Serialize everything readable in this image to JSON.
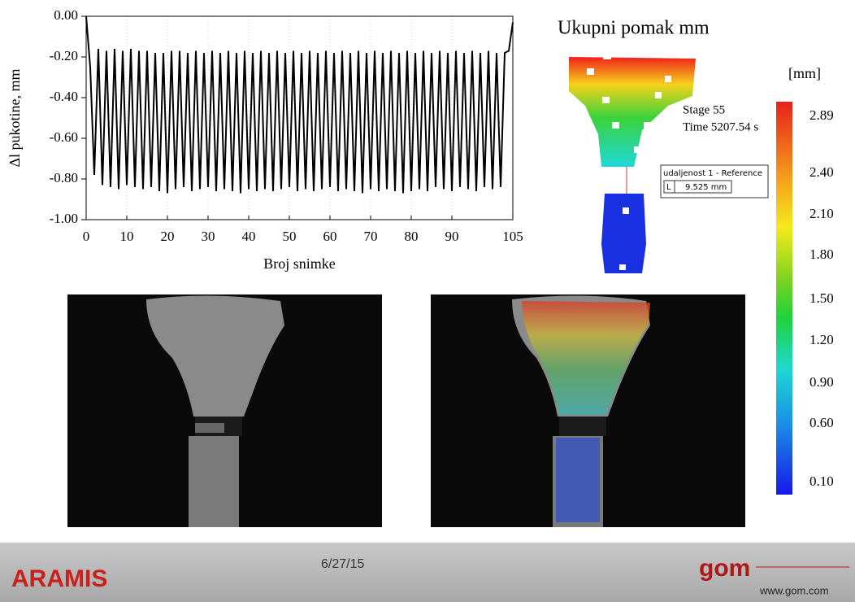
{
  "chart_data": {
    "type": "line",
    "x_label": "Broj snimke",
    "y_label": "Δl pukotine, mm",
    "color": "#000000",
    "grid": true,
    "xlim": [
      0,
      105
    ],
    "xticks": [
      0,
      10,
      20,
      30,
      40,
      50,
      60,
      70,
      80,
      90,
      105
    ],
    "ylim": [
      -1,
      0
    ],
    "yticks": [
      {
        "value": 0,
        "label": "0.00"
      },
      {
        "value": -0.2,
        "label": "-0.20"
      },
      {
        "value": -0.4,
        "label": "-0.40"
      },
      {
        "value": -0.6,
        "label": "-0.60"
      },
      {
        "value": -0.8,
        "label": "-0.80"
      },
      {
        "value": -1,
        "label": "-1.00"
      }
    ],
    "x": [
      0,
      1,
      2,
      3,
      4,
      5,
      6,
      7,
      8,
      9,
      10,
      11,
      12,
      13,
      14,
      15,
      16,
      17,
      18,
      19,
      20,
      21,
      22,
      23,
      24,
      25,
      26,
      27,
      28,
      29,
      30,
      31,
      32,
      33,
      34,
      35,
      36,
      37,
      38,
      39,
      40,
      41,
      42,
      43,
      44,
      45,
      46,
      47,
      48,
      49,
      50,
      51,
      52,
      53,
      54,
      55,
      56,
      57,
      58,
      59,
      60,
      61,
      62,
      63,
      64,
      65,
      66,
      67,
      68,
      69,
      70,
      71,
      72,
      73,
      74,
      75,
      76,
      77,
      78,
      79,
      80,
      81,
      82,
      83,
      84,
      85,
      86,
      87,
      88,
      89,
      90,
      91,
      92,
      93,
      94,
      95,
      96,
      97,
      98,
      99,
      100,
      101,
      102,
      103,
      104,
      105
    ],
    "values": [
      0,
      -0.25,
      -0.78,
      -0.16,
      -0.83,
      -0.17,
      -0.84,
      -0.16,
      -0.85,
      -0.17,
      -0.83,
      -0.16,
      -0.84,
      -0.17,
      -0.85,
      -0.17,
      -0.84,
      -0.18,
      -0.86,
      -0.18,
      -0.87,
      -0.17,
      -0.85,
      -0.17,
      -0.84,
      -0.18,
      -0.86,
      -0.17,
      -0.85,
      -0.18,
      -0.84,
      -0.17,
      -0.86,
      -0.18,
      -0.85,
      -0.17,
      -0.86,
      -0.18,
      -0.87,
      -0.17,
      -0.85,
      -0.18,
      -0.86,
      -0.17,
      -0.85,
      -0.18,
      -0.86,
      -0.17,
      -0.85,
      -0.18,
      -0.84,
      -0.17,
      -0.86,
      -0.18,
      -0.85,
      -0.17,
      -0.86,
      -0.18,
      -0.85,
      -0.17,
      -0.84,
      -0.18,
      -0.86,
      -0.17,
      -0.85,
      -0.18,
      -0.86,
      -0.17,
      -0.87,
      -0.18,
      -0.85,
      -0.17,
      -0.86,
      -0.18,
      -0.85,
      -0.17,
      -0.86,
      -0.18,
      -0.87,
      -0.17,
      -0.86,
      -0.18,
      -0.85,
      -0.17,
      -0.86,
      -0.18,
      -0.84,
      -0.17,
      -0.85,
      -0.18,
      -0.86,
      -0.17,
      -0.84,
      -0.18,
      -0.85,
      -0.17,
      -0.86,
      -0.18,
      -0.84,
      -0.17,
      -0.85,
      -0.18,
      -0.84,
      -0.18,
      -0.17,
      -0.03
    ]
  },
  "contour": {
    "title": "Ukupni pomak  mm",
    "stage": "Stage 55",
    "time": "Time  5207.54 s",
    "gauge_name": "udaljenost 1 - Reference",
    "gauge_symbol": "L",
    "gauge_value": "9.525 mm",
    "unit": "[mm]",
    "scale_labels": [
      "2.89",
      "2.40",
      "2.10",
      "1.80",
      "1.50",
      "1.20",
      "0.90",
      "0.60",
      "0.10"
    ]
  },
  "footer": {
    "brand": "ARAMIS",
    "date": "6/27/15",
    "logo": "gom",
    "url": "www.gom.com"
  }
}
